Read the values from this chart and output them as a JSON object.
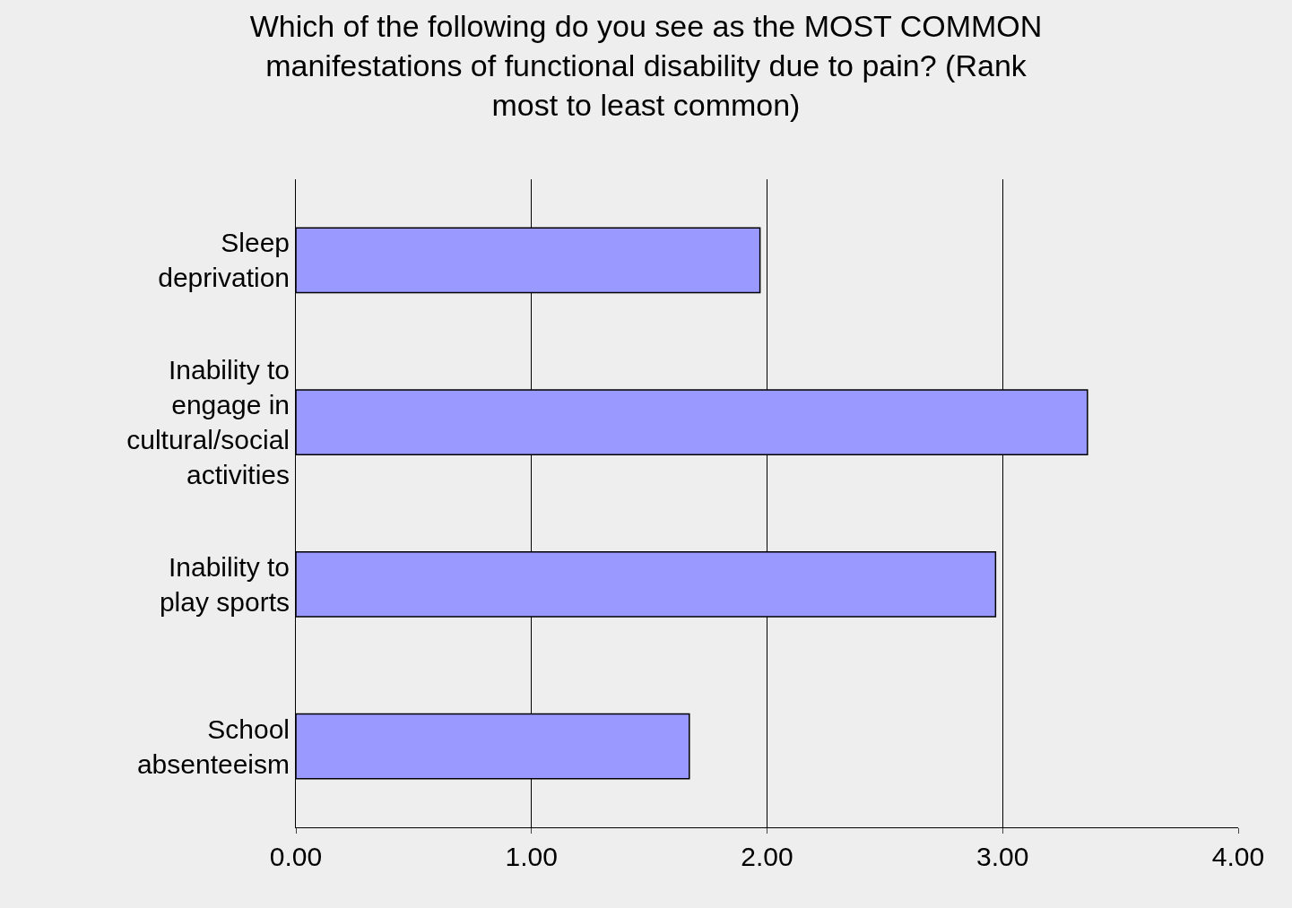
{
  "chart_data": {
    "type": "bar",
    "orientation": "horizontal",
    "title": "Which of the following do you see as the MOST COMMON manifestations of functional disability due to pain? (Rank  most to least common)",
    "categories": [
      "Sleep deprivation",
      "Inability to engage in cultural/social activities",
      "Inability to play sports",
      "School absenteeism"
    ],
    "values": [
      1.97,
      3.36,
      2.97,
      1.67
    ],
    "color": "#9999ff",
    "xlim": [
      0,
      4
    ],
    "xticks": [
      {
        "value": 0,
        "label": "0.00"
      },
      {
        "value": 1,
        "label": "1.00"
      },
      {
        "value": 2,
        "label": "2.00"
      },
      {
        "value": 3,
        "label": "3.00"
      },
      {
        "value": 4,
        "label": "4.00"
      }
    ],
    "grid": "x"
  }
}
